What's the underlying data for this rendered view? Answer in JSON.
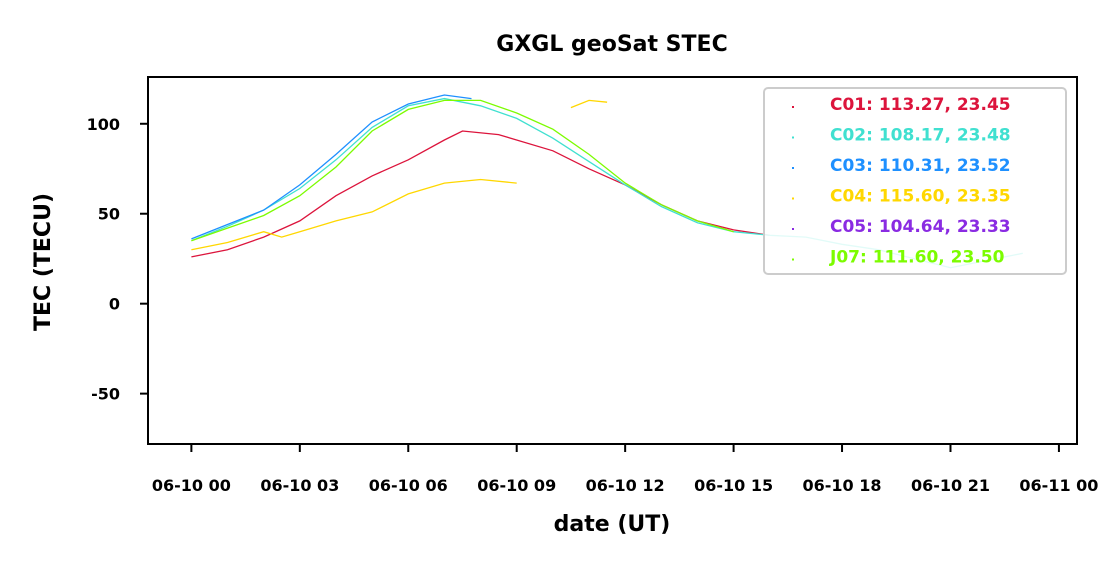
{
  "chart_data": {
    "type": "line",
    "title": "GXGL geoSat STEC",
    "xlabel": "date (UT)",
    "ylabel": "TEC (TECU)",
    "xlim": [
      "2024-06-09 22:48",
      "2024-06-11 00:30"
    ],
    "ylim": [
      -78,
      126
    ],
    "x_ticks": [
      "06-10 00",
      "06-10 03",
      "06-10 06",
      "06-10 09",
      "06-10 12",
      "06-10 15",
      "06-10 18",
      "06-10 21",
      "06-11 00"
    ],
    "y_ticks": [
      -50,
      0,
      50,
      100
    ],
    "grid": false,
    "legend_position": "upper-right",
    "legend": [
      {
        "label": "C01: 113.27,  23.45",
        "color": "#dc143c"
      },
      {
        "label": "C02: 108.17,  23.48",
        "color": "#40e0d0"
      },
      {
        "label": "C03: 110.31,  23.52",
        "color": "#1e90ff"
      },
      {
        "label": "C04: 115.60,  23.35",
        "color": "#ffd700"
      },
      {
        "label": "C05: 104.64,  23.33",
        "color": "#8a2be2"
      },
      {
        "label": "J07: 111.60,  23.50",
        "color": "#7cfc00"
      }
    ],
    "series": [
      {
        "name": "C01",
        "color": "#dc143c",
        "x": [
          "06-10 00:00",
          "06-10 01:00",
          "06-10 02:00",
          "06-10 03:00",
          "06-10 04:00",
          "06-10 05:00",
          "06-10 06:00",
          "06-10 07:00",
          "06-10 07:30",
          "06-10 08:30",
          "06-10 10:00",
          "06-10 11:00",
          "06-10 12:00",
          "06-10 13:00",
          "06-10 14:00",
          "06-10 15:00",
          "06-10 16:00"
        ],
        "y": [
          26,
          30,
          37,
          46,
          60,
          71,
          80,
          91,
          96,
          94,
          85,
          75,
          66,
          55,
          46,
          41,
          38
        ]
      },
      {
        "name": "C02",
        "color": "#40e0d0",
        "x": [
          "06-10 00:00",
          "06-10 01:00",
          "06-10 02:00",
          "06-10 03:00",
          "06-10 04:00",
          "06-10 05:00",
          "06-10 06:00",
          "06-10 07:00",
          "06-10 08:00",
          "06-10 09:00",
          "06-10 10:00",
          "06-10 11:00",
          "06-10 12:00",
          "06-10 13:00",
          "06-10 14:00",
          "06-10 15:00",
          "06-10 16:00",
          "06-10 17:00",
          "06-10 18:00",
          "06-10 19:00",
          "06-10 20:00",
          "06-10 21:00",
          "06-10 22:00",
          "06-10 23:00"
        ],
        "y": [
          35,
          43,
          52,
          64,
          80,
          98,
          110,
          114,
          110,
          103,
          92,
          79,
          66,
          54,
          45,
          40,
          38,
          37,
          33,
          30,
          25,
          20,
          24,
          28
        ]
      },
      {
        "name": "C03",
        "color": "#1e90ff",
        "x": [
          "06-10 00:00",
          "06-10 01:00",
          "06-10 02:00",
          "06-10 03:00",
          "06-10 04:00",
          "06-10 05:00",
          "06-10 06:00",
          "06-10 07:00",
          "06-10 07:45"
        ],
        "y": [
          36,
          44,
          52,
          66,
          83,
          101,
          111,
          116,
          114
        ]
      },
      {
        "name": "J07",
        "color": "#7cfc00",
        "x": [
          "06-10 00:00",
          "06-10 01:00",
          "06-10 02:00",
          "06-10 03:00",
          "06-10 04:00",
          "06-10 05:00",
          "06-10 06:00",
          "06-10 07:00",
          "06-10 08:00",
          "06-10 09:00",
          "06-10 10:00",
          "06-10 11:00",
          "06-10 12:00",
          "06-10 13:00",
          "06-10 14:00",
          "06-10 15:00"
        ],
        "y": [
          35,
          42,
          49,
          60,
          76,
          96,
          108,
          113,
          113,
          106,
          97,
          83,
          67,
          55,
          46,
          40
        ]
      },
      {
        "name": "C04",
        "color": "#ffd700",
        "x": [
          "06-10 00:00",
          "06-10 01:00",
          "06-10 02:00",
          "06-10 02:30",
          "06-10 03:00",
          "06-10 04:00",
          "06-10 05:00",
          "06-10 06:00",
          "06-10 07:00",
          "06-10 08:00",
          "06-10 09:00"
        ],
        "y": [
          30,
          34,
          40,
          37,
          40,
          46,
          51,
          61,
          67,
          69,
          67
        ]
      },
      {
        "name": "C04 (late pass)",
        "color": "#ffd700",
        "x": [
          "06-10 10:30",
          "06-10 11:00",
          "06-10 11:30"
        ],
        "y": [
          109,
          113,
          112
        ]
      }
    ]
  }
}
